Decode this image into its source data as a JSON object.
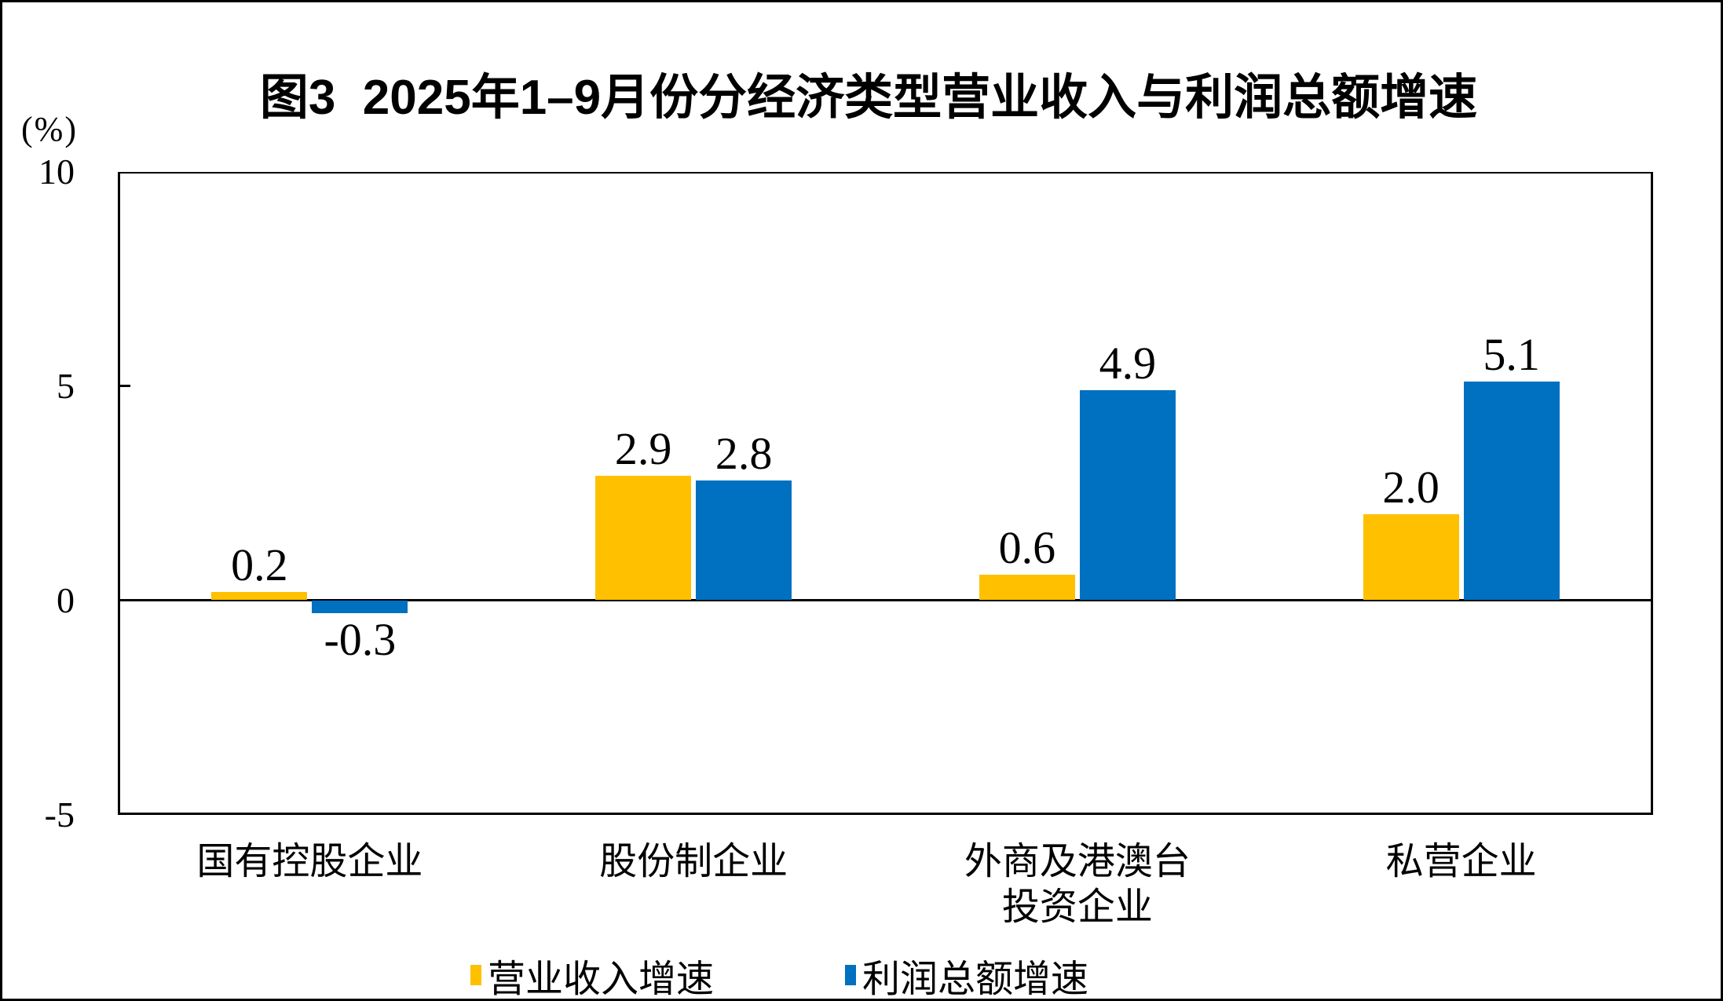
{
  "title": "图3  2025年1–9月份分经济类型营业收入与利润总额增速",
  "y_axis": {
    "unit_label": "(%)",
    "ticks": [
      10,
      5,
      0,
      -5
    ]
  },
  "chart_data": {
    "type": "bar",
    "categories": [
      [
        "国有控股企业"
      ],
      [
        "股份制企业"
      ],
      [
        "外商及港澳台",
        "投资企业"
      ],
      [
        "私营企业"
      ]
    ],
    "series": [
      {
        "name": "营业收入增速",
        "color": "#FFC000",
        "values": [
          0.2,
          2.9,
          0.6,
          2.0
        ],
        "labels": [
          "0.2",
          "2.9",
          "0.6",
          "2.0"
        ]
      },
      {
        "name": "利润总额增速",
        "color": "#0070C0",
        "values": [
          -0.3,
          2.8,
          4.9,
          5.1
        ],
        "labels": [
          "-0.3",
          "2.8",
          "4.9",
          "5.1"
        ]
      }
    ],
    "ylim": [
      -5,
      10
    ],
    "grid": false,
    "legend_position": "bottom"
  }
}
